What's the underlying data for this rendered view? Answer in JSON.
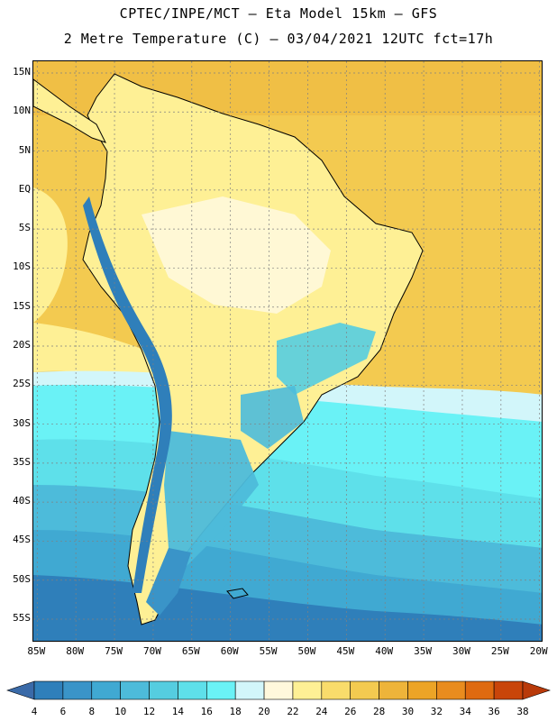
{
  "header": {
    "title_line1": "CPTEC/INPE/MCT –  Eta Model 15km – GFS",
    "title_line2": "2 Metre Temperature (C) – 03/04/2021 12UTC fct=17h"
  },
  "map": {
    "lat_labels": [
      "15N",
      "10N",
      "5N",
      "EQ",
      "5S",
      "10S",
      "15S",
      "20S",
      "25S",
      "30S",
      "35S",
      "40S",
      "45S",
      "50S",
      "55S"
    ],
    "lon_labels": [
      "85W",
      "80W",
      "75W",
      "70W",
      "65W",
      "60W",
      "55W",
      "50W",
      "45W",
      "40W",
      "35W",
      "30W",
      "25W",
      "20W"
    ],
    "lat_values": [
      15,
      10,
      5,
      0,
      -5,
      -10,
      -15,
      -20,
      -25,
      -30,
      -35,
      -40,
      -45,
      -50,
      -55
    ],
    "lon_values": [
      -85,
      -80,
      -75,
      -70,
      -65,
      -60,
      -55,
      -50,
      -45,
      -40,
      -35,
      -30,
      -25,
      -20
    ],
    "extent": {
      "lon_min": -85.5,
      "lon_max": -19.5,
      "lat_min": -58,
      "lat_max": 16.5
    }
  },
  "legend": {
    "values": [
      "4",
      "6",
      "8",
      "10",
      "12",
      "14",
      "16",
      "18",
      "20",
      "22",
      "24",
      "26",
      "28",
      "30",
      "32",
      "34",
      "36",
      "38"
    ],
    "colors": [
      "#3a6aa8",
      "#2f7fba",
      "#3a94c8",
      "#40a9d2",
      "#4dbbda",
      "#55cde0",
      "#5ee0ea",
      "#6af2f6",
      "#d2f6fa",
      "#fff8dc",
      "#fef095",
      "#f9dc6b",
      "#f3ca50",
      "#eeb43a",
      "#eca426",
      "#e98c1e",
      "#df6a10",
      "#c9450a",
      "#b93a0a"
    ],
    "below_color": "#3a6aa8",
    "above_color": "#b93a0a"
  }
}
